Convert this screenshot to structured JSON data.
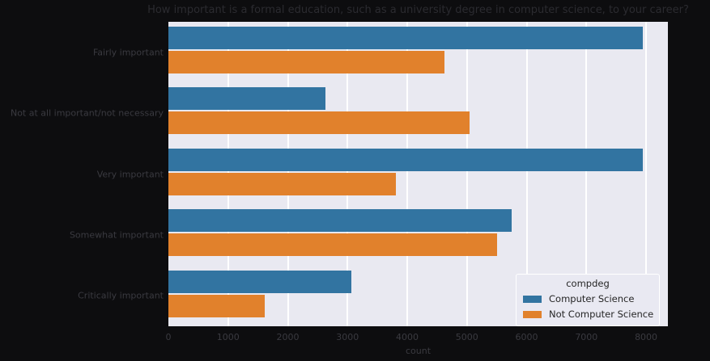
{
  "title": "How important is a formal education, such as a university degree in computer science, to your career?",
  "colors": {
    "figure_bg": "#0d0d0f",
    "plot_bg": "#e9e9f1",
    "gridline": "#ffffff",
    "axis_text": "#3a3a40",
    "title_text": "#2b2b30",
    "legend_text": "#262626",
    "series_blue": "#3274a1",
    "series_orange": "#e1812c"
  },
  "chart_data": {
    "type": "bar",
    "orientation": "horizontal",
    "title": "How important is a formal education, such as a university degree in computer science, to your career?",
    "xlabel": "count",
    "ylabel": "",
    "categories": [
      "Fairly important",
      "Not at all important/not necessary",
      "Very important",
      "Somewhat important",
      "Critically important"
    ],
    "series": [
      {
        "name": "Computer Science",
        "color": "#3274a1",
        "values": [
          7940,
          2630,
          7950,
          5750,
          3070
        ]
      },
      {
        "name": "Not Computer Science",
        "color": "#e1812c",
        "values": [
          4620,
          5050,
          3810,
          5500,
          1620
        ]
      }
    ],
    "xlim": [
      0,
      8365
    ],
    "xticks": [
      0,
      1000,
      2000,
      3000,
      4000,
      5000,
      6000,
      7000,
      8000
    ],
    "grid": true,
    "legend": {
      "title": "compdeg",
      "position": "lower right"
    }
  }
}
